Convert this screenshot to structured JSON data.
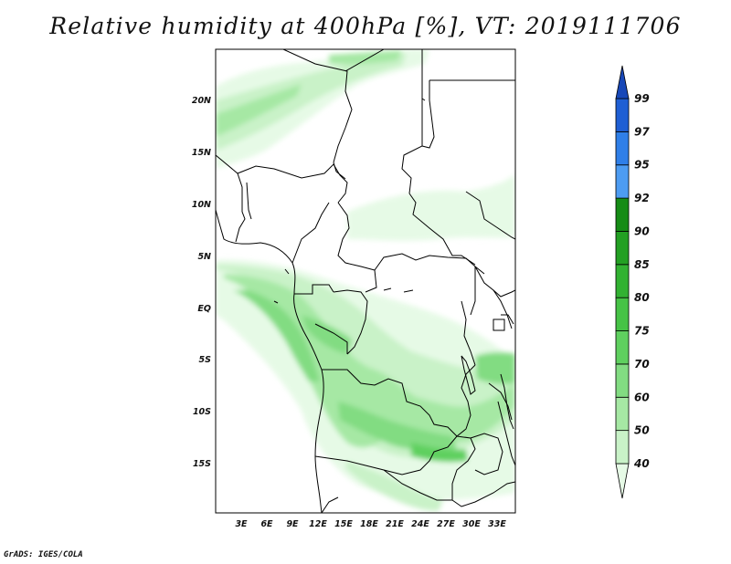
{
  "title": "Relative humidity at 400hPa [%], VT: 2019111706",
  "credit": "GrADS: IGES/COLA",
  "map": {
    "lat_labels": [
      "20N",
      "15N",
      "10N",
      "5N",
      "EQ",
      "5S",
      "10S",
      "15S"
    ],
    "lon_labels": [
      "3E",
      "6E",
      "9E",
      "12E",
      "15E",
      "18E",
      "21E",
      "24E",
      "27E",
      "30E",
      "33E"
    ],
    "variable": "relative humidity",
    "level": "400hPa",
    "units": "%",
    "valid_time": "2019111706"
  },
  "colorbar": {
    "levels": [
      "40",
      "50",
      "60",
      "70",
      "75",
      "80",
      "85",
      "90",
      "92",
      "95",
      "97",
      "99"
    ],
    "colors": [
      "#e6fae6",
      "#c9f2c8",
      "#a6e8a4",
      "#82dc82",
      "#5fd05f",
      "#46c346",
      "#32b232",
      "#23a023",
      "#168c16",
      "#4d9cf2",
      "#2f7fe8",
      "#1f5fd4",
      "#1848b8"
    ]
  }
}
